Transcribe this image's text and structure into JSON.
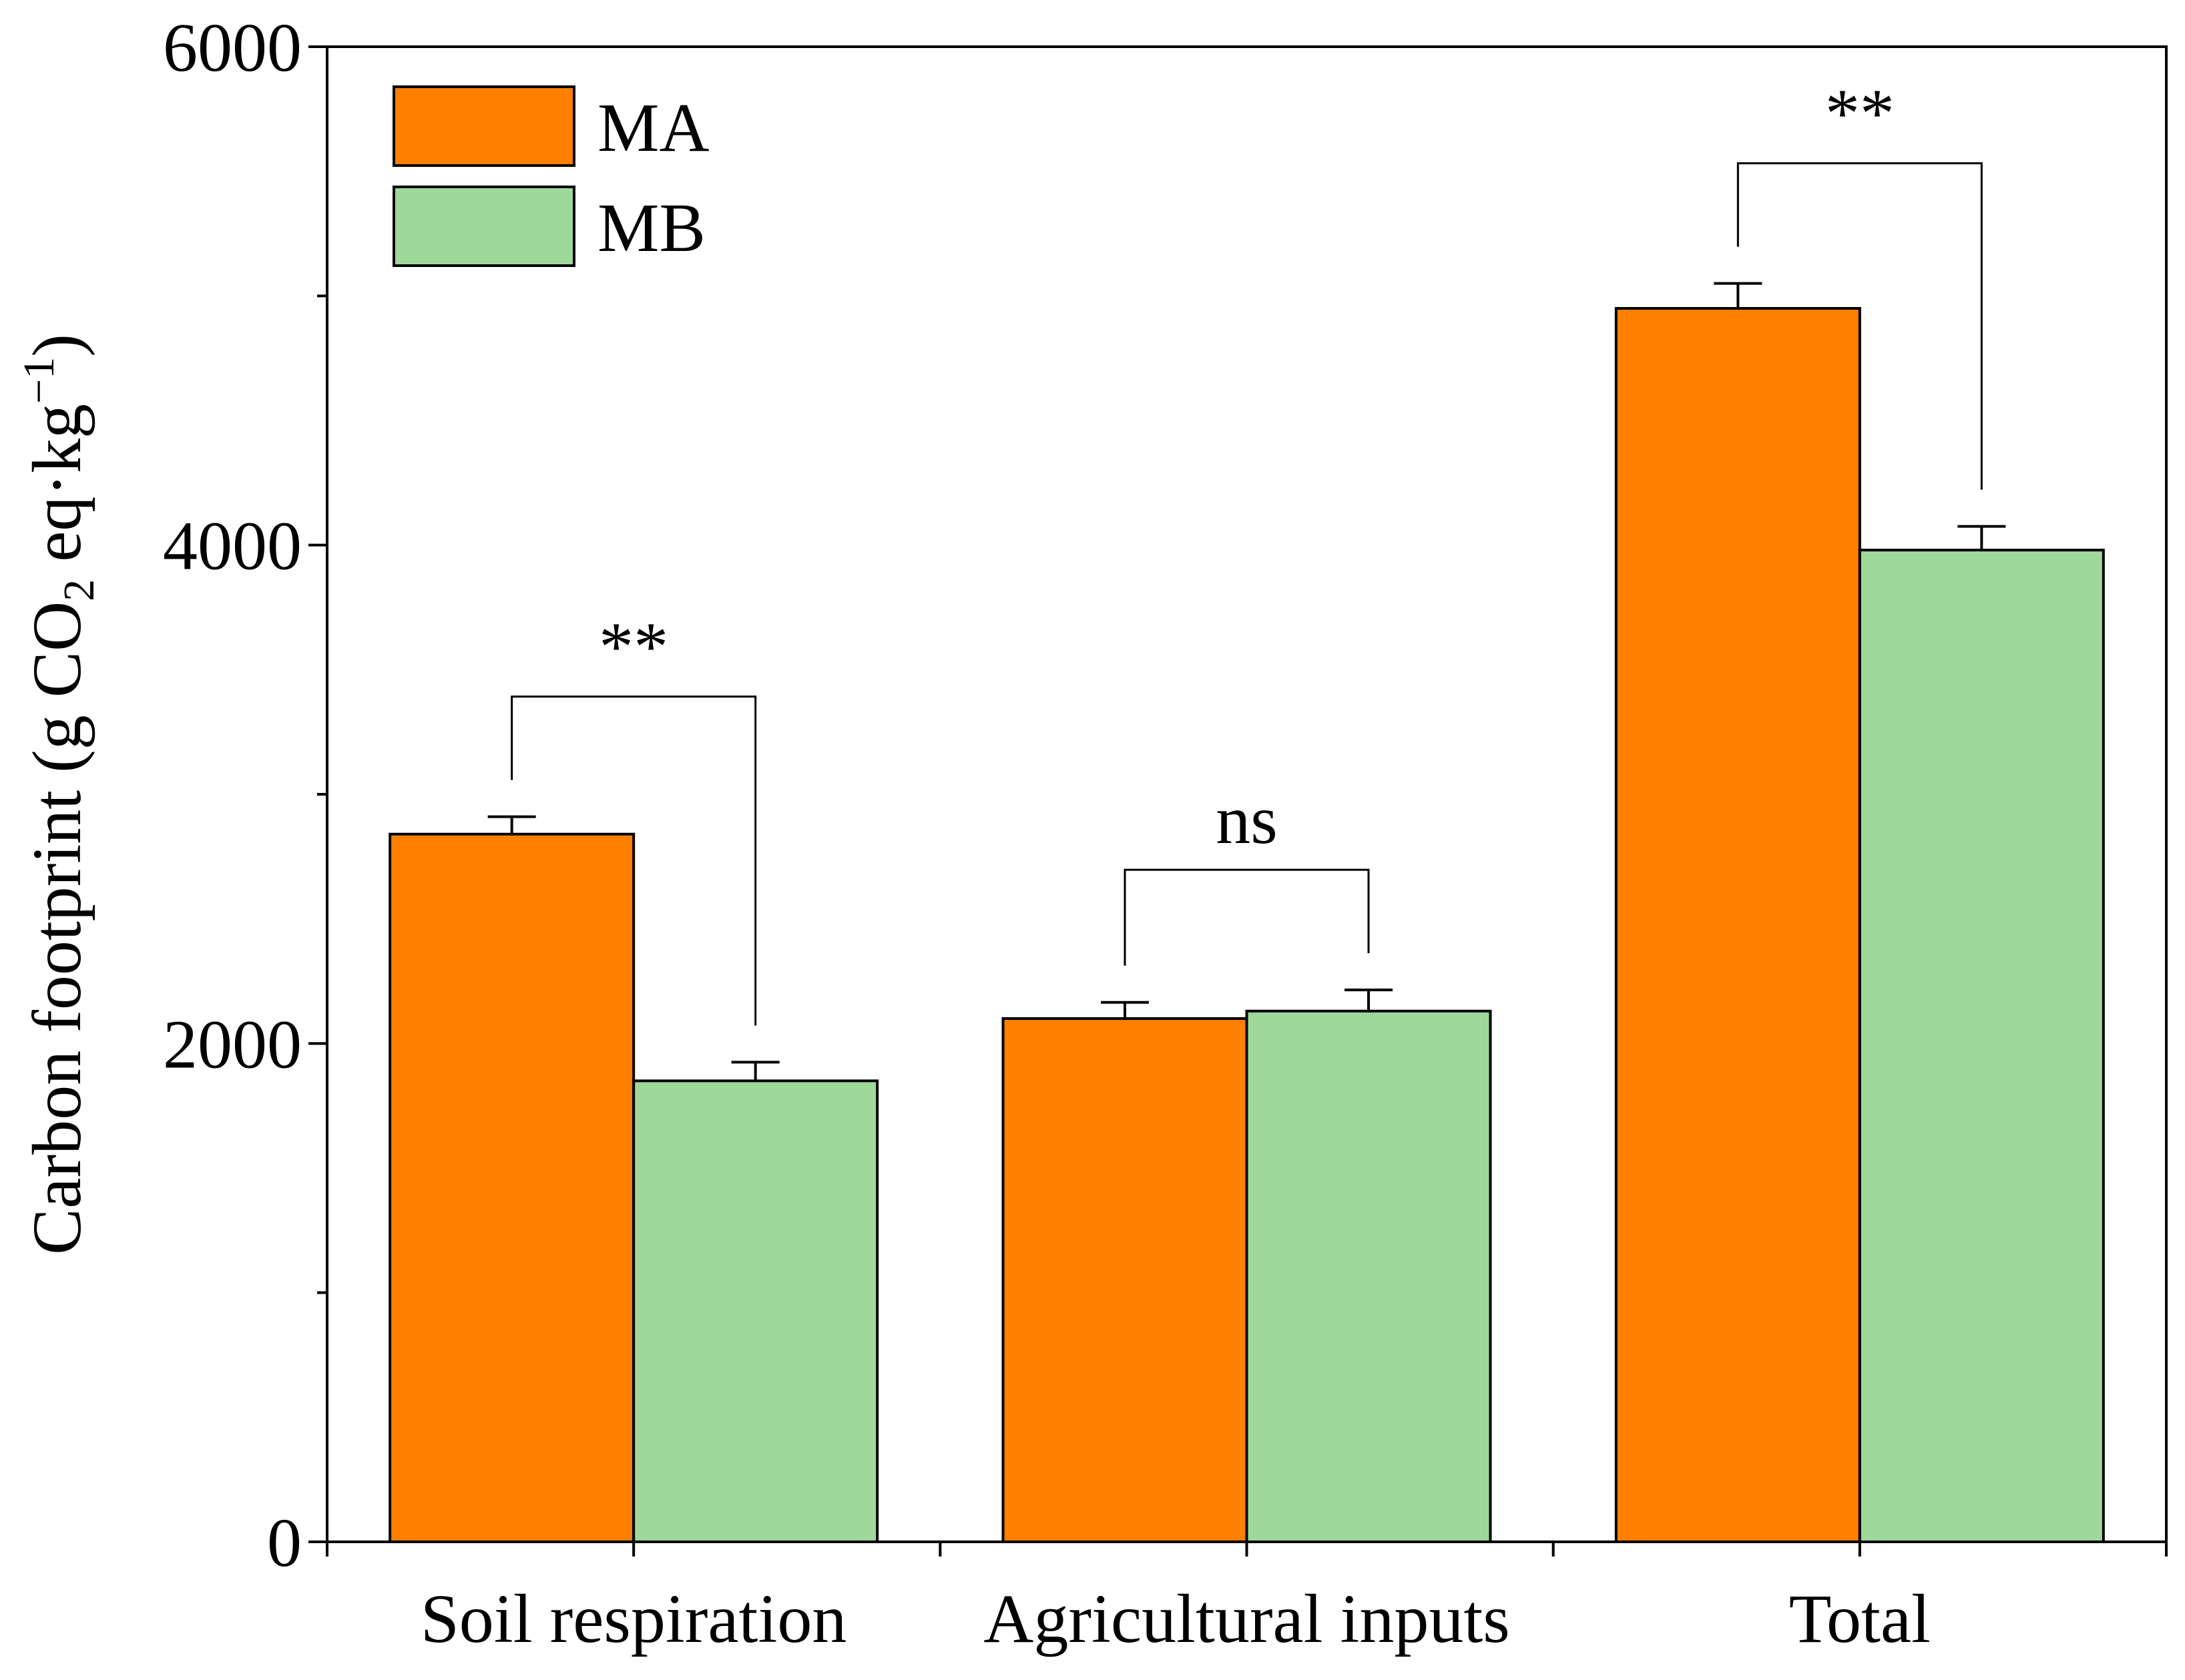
{
  "chart_data": {
    "type": "bar",
    "title": "",
    "xlabel": "",
    "ylabel": {
      "main": "Carbon footprint (g CO",
      "subscript": "2",
      "middle": " eq·kg",
      "superscript": "−1",
      "end": ")"
    },
    "ylim": [
      0,
      6000
    ],
    "yticks": [
      0,
      2000,
      4000,
      6000
    ],
    "minor_yticks": [
      1000,
      3000,
      5000
    ],
    "categories": [
      "Soil respiration",
      "Agricultural inputs",
      "Total"
    ],
    "series": [
      {
        "name": "MA",
        "color": "#FF7F00",
        "values": [
          2840,
          2100,
          4950
        ],
        "errors": [
          70,
          65,
          100
        ]
      },
      {
        "name": "MB",
        "color": "#9ED89B",
        "values": [
          1850,
          2130,
          3980
        ],
        "errors": [
          75,
          85,
          95
        ]
      }
    ],
    "significance": [
      "**",
      "ns",
      "**"
    ],
    "legend_position": "top-left"
  }
}
